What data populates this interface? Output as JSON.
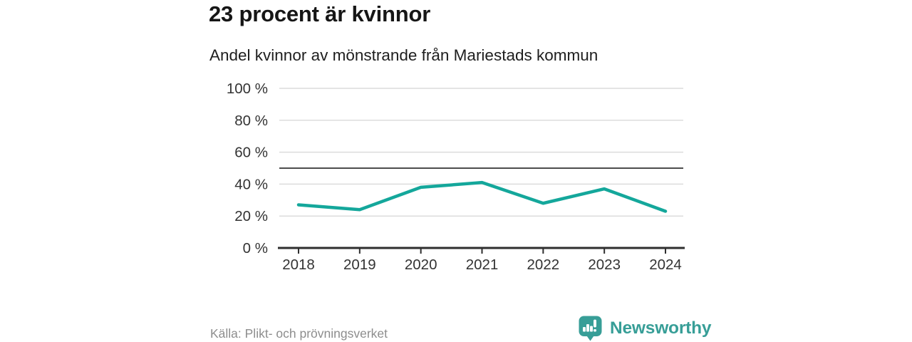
{
  "header": {
    "title": "23 procent är kvinnor",
    "subtitle": "Andel kvinnor av mönstrande från Mariestads kommun"
  },
  "chart_data": {
    "type": "line",
    "title": "23 procent är kvinnor",
    "subtitle": "Andel kvinnor av mönstrande från Mariestads kommun",
    "categories": [
      "2018",
      "2019",
      "2020",
      "2021",
      "2022",
      "2023",
      "2024"
    ],
    "series": [
      {
        "name": "Andel kvinnor av mönstrande",
        "values": [
          27,
          24,
          38,
          41,
          28,
          37,
          23
        ]
      }
    ],
    "xlabel": "",
    "ylabel": "",
    "ylim": [
      0,
      100
    ],
    "yticks": [
      0,
      20,
      40,
      60,
      80,
      100
    ],
    "ytick_suffix": " %",
    "reference_line": 50,
    "grid": true,
    "legend_position": "none",
    "colors": {
      "line": "#14a79b",
      "grid": "#dcdcdc",
      "reference": "#4d4d4d",
      "axis": "#2e2e2e",
      "tick_label": "#333333"
    }
  },
  "footer": {
    "source": "Källa: Plikt- och prövningsverket",
    "brand": {
      "name": "Newsworthy",
      "color": "#379e97",
      "icon": "bar-chart-speech-bubble-icon"
    }
  }
}
